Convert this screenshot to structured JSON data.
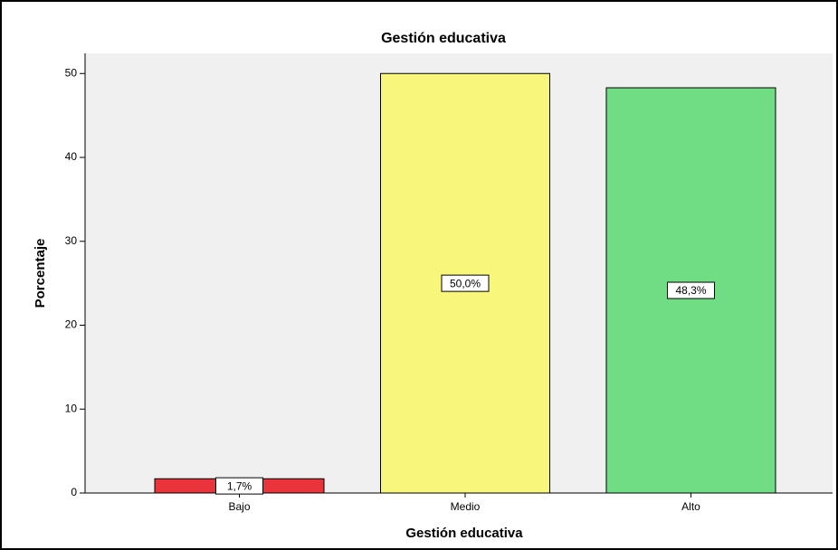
{
  "chart_data": {
    "type": "bar",
    "title": "Gestión educativa",
    "x_label": "Gestión educativa",
    "y_label": "Porcentaje",
    "categories": [
      "Bajo",
      "Medio",
      "Alto"
    ],
    "values": [
      1.7,
      50.0,
      48.3
    ],
    "value_labels": [
      "1,7%",
      "50,0%",
      "48,3%"
    ],
    "colors": [
      "#e8343a",
      "#f8f77b",
      "#70dc84"
    ],
    "ylim": [
      0,
      52.4
    ],
    "yticks": [
      0,
      10,
      20,
      30,
      40,
      50
    ]
  }
}
